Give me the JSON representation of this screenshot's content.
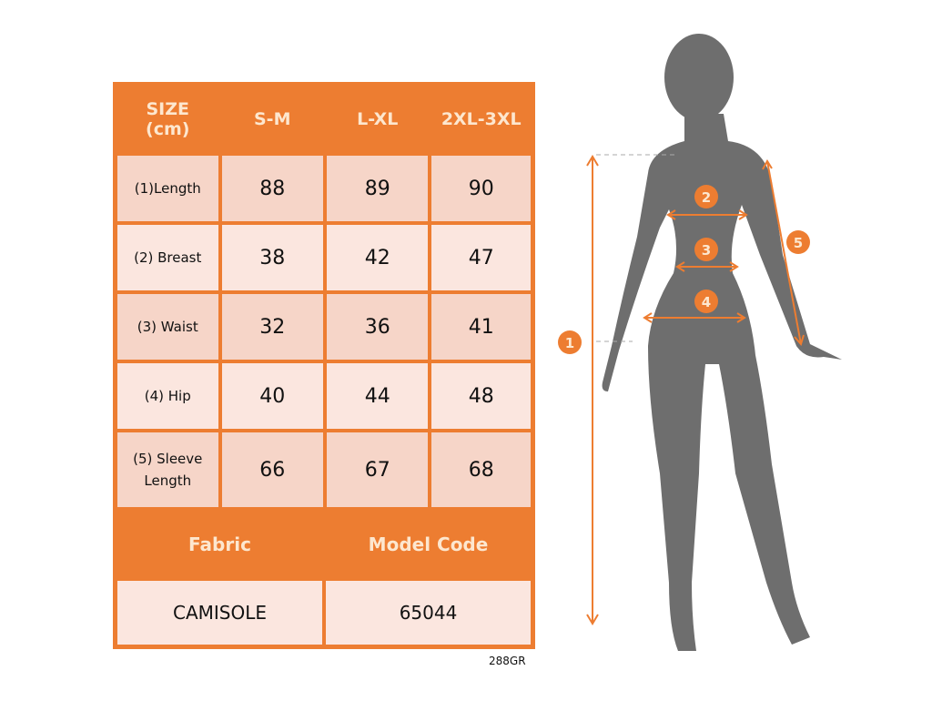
{
  "table": {
    "headers": [
      "SIZE\n(cm)",
      "S-M",
      "L-XL",
      "2XL-3XL"
    ],
    "rows": [
      {
        "label": "(1)Length",
        "values": [
          "88",
          "89",
          "90"
        ]
      },
      {
        "label": "(2) Breast",
        "values": [
          "38",
          "42",
          "47"
        ]
      },
      {
        "label": "(3) Waist",
        "values": [
          "32",
          "36",
          "41"
        ]
      },
      {
        "label": "(4) Hip",
        "values": [
          "40",
          "44",
          "48"
        ]
      },
      {
        "label": "(5) Sleeve Length",
        "values": [
          "66",
          "67",
          "68"
        ]
      }
    ],
    "footer_headers": [
      "Fabric",
      "Model Code"
    ],
    "footer_values": [
      "CAMISOLE",
      "65044"
    ]
  },
  "product_code": "288GR",
  "figure": {
    "markers": [
      "1",
      "2",
      "3",
      "4",
      "5"
    ]
  },
  "colors": {
    "accent": "#ed7d31",
    "silhouette": "#6e6e6e"
  }
}
